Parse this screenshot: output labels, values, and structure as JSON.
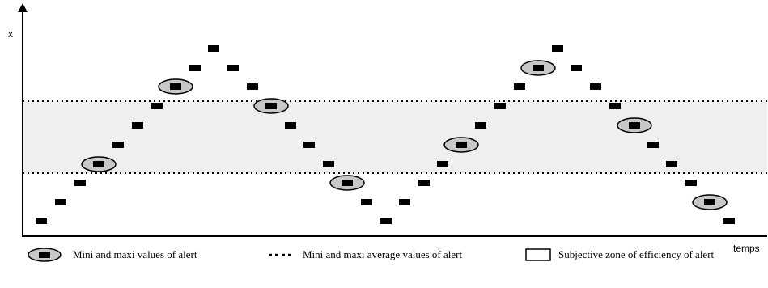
{
  "axes": {
    "y_label": "x",
    "x_label": "temps"
  },
  "colors": {
    "marker": "#000000",
    "zone_fill": "#efefef",
    "ellipse_fill": "#c8c8c8",
    "line": "#000000"
  },
  "legend": {
    "alert_values": "Mini and maxi values of alert",
    "average_values": "Mini and maxi average values of alert",
    "efficiency_zone": "Subjective zone of efficiency of alert"
  },
  "icons": {
    "alert_marker": "ellipse-with-square-icon",
    "average_line": "dotted-line-icon",
    "zone_box": "rectangle-icon"
  }
}
